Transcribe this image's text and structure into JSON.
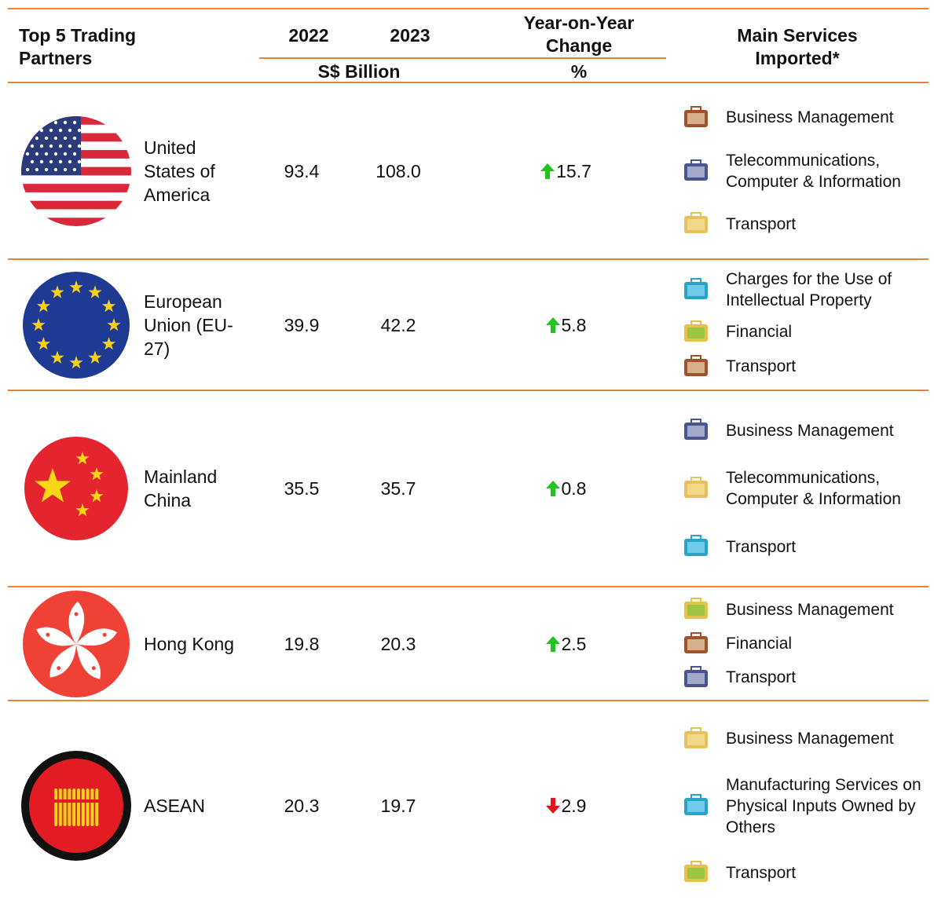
{
  "header": {
    "partner": "Top 5 Trading Partners",
    "year1": "2022",
    "year2": "2023",
    "change": "Year-on-Year Change",
    "services": "Main Services Imported*",
    "value_unit": "S$ Billion",
    "change_unit": "%"
  },
  "rows": [
    {
      "partner": "United States of America",
      "v2022": "93.4",
      "v2023": "108.0",
      "change": "15.7",
      "direction": "up",
      "services": [
        "Business Management",
        "Telecommunications, Computer & Information",
        "Transport"
      ]
    },
    {
      "partner": "European Union (EU-27)",
      "v2022": "39.9",
      "v2023": "42.2",
      "change": "5.8",
      "direction": "up",
      "services": [
        "Charges for the Use of Intellectual Property",
        "Financial",
        "Transport"
      ]
    },
    {
      "partner": "Mainland China",
      "v2022": "35.5",
      "v2023": "35.7",
      "change": "0.8",
      "direction": "up",
      "services": [
        "Business Management",
        "Telecommunications, Computer & Information",
        "Transport"
      ]
    },
    {
      "partner": "Hong Kong",
      "v2022": "19.8",
      "v2023": "20.3",
      "change": "2.5",
      "direction": "up",
      "services": [
        "Business Management",
        "Financial",
        "Transport"
      ]
    },
    {
      "partner": "ASEAN",
      "v2022": "20.3",
      "v2023": "19.7",
      "change": "2.9",
      "direction": "down",
      "services": [
        "Business Management",
        "Manufacturing Services on Physical Inputs Owned by Others",
        "Transport"
      ]
    }
  ]
}
